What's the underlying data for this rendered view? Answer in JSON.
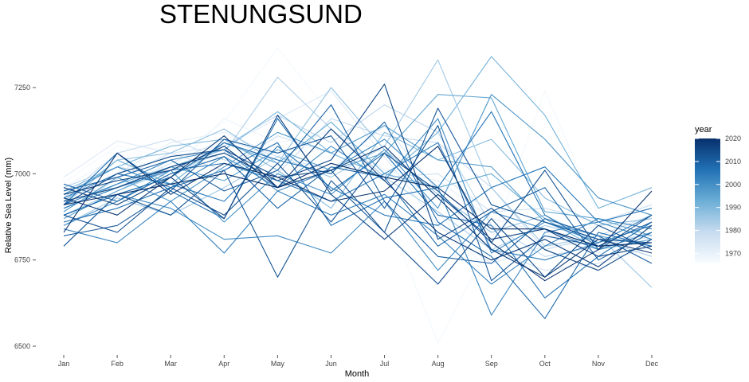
{
  "chart_data": {
    "type": "line",
    "title": "STENUNGSUND",
    "xlabel": "Month",
    "ylabel": "Relative Sea Level (mm)",
    "categories": [
      "Jan",
      "Feb",
      "Mar",
      "Apr",
      "May",
      "Jun",
      "Jul",
      "Aug",
      "Sep",
      "Oct",
      "Nov",
      "Dec"
    ],
    "ylim": [
      6500,
      7360
    ],
    "yticks": [
      6500,
      6750,
      7000,
      7250
    ],
    "grid": false,
    "legend": {
      "title": "year",
      "position": "right",
      "range": [
        1966,
        2020
      ],
      "ticks": [
        1970,
        1980,
        1990,
        2000,
        2010,
        2020
      ],
      "color_low": "#f7fbff",
      "color_high": "#08306b"
    },
    "series": [
      {
        "year": 1967,
        "values": [
          6975,
          7080,
          7045,
          7150,
          7365,
          7170,
          6905,
          6510,
          6805,
          7240,
          6880,
          6800
        ]
      },
      {
        "year": 1969,
        "values": [
          6960,
          7050,
          7010,
          7160,
          7090,
          7120,
          7060,
          6890,
          6700,
          6810,
          6850,
          6910
        ]
      },
      {
        "year": 1971,
        "values": [
          6920,
          7000,
          7090,
          7120,
          7050,
          7130,
          7010,
          6980,
          6870,
          6830,
          6770,
          6820
        ]
      },
      {
        "year": 1973,
        "values": [
          6990,
          7095,
          7060,
          7080,
          7160,
          7240,
          7050,
          6850,
          6740,
          6790,
          6800,
          6850
        ]
      },
      {
        "year": 1975,
        "values": [
          6940,
          6960,
          7030,
          7100,
          7050,
          7010,
          7140,
          6950,
          6780,
          6720,
          6740,
          6790
        ]
      },
      {
        "year": 1977,
        "values": [
          6890,
          6985,
          7060,
          7010,
          7110,
          7060,
          6990,
          7000,
          6890,
          6900,
          6860,
          6910
        ]
      },
      {
        "year": 1979,
        "values": [
          6930,
          7060,
          7100,
          7040,
          7000,
          7160,
          7110,
          7090,
          6960,
          6780,
          6820,
          6880
        ]
      },
      {
        "year": 1981,
        "values": [
          6960,
          7020,
          6990,
          7080,
          7170,
          7090,
          7200,
          7120,
          6850,
          6760,
          6790,
          6830
        ]
      },
      {
        "year": 1983,
        "values": [
          6880,
          6950,
          7010,
          7060,
          7280,
          7130,
          6990,
          6890,
          6780,
          6850,
          6810,
          6760
        ]
      },
      {
        "year": 1985,
        "values": [
          6850,
          6930,
          6880,
          6960,
          7050,
          6990,
          7080,
          7330,
          6960,
          6790,
          6820,
          6670
        ]
      },
      {
        "year": 1987,
        "values": [
          6910,
          7040,
          7060,
          7130,
          7030,
          7250,
          7070,
          6940,
          6830,
          6880,
          6800,
          6850
        ]
      },
      {
        "year": 1989,
        "values": [
          6950,
          7020,
          7080,
          7100,
          7010,
          6900,
          7120,
          7040,
          7100,
          6930,
          6850,
          6870
        ]
      },
      {
        "year": 1991,
        "values": [
          6900,
          6970,
          7020,
          7070,
          7180,
          7060,
          6990,
          7120,
          7340,
          7170,
          6900,
          6960
        ]
      },
      {
        "year": 1993,
        "values": [
          6920,
          7040,
          6970,
          7090,
          7030,
          7150,
          7000,
          6960,
          7000,
          6870,
          6780,
          6810
        ]
      },
      {
        "year": 1995,
        "values": [
          6870,
          6950,
          7020,
          6980,
          7070,
          7010,
          7060,
          7230,
          7220,
          6890,
          6870,
          6820
        ]
      },
      {
        "year": 1997,
        "values": [
          6890,
          6990,
          6920,
          7020,
          7120,
          7060,
          7140,
          7040,
          7020,
          6860,
          6820,
          6790
        ]
      },
      {
        "year": 1999,
        "values": [
          6850,
          6920,
          7010,
          6860,
          7000,
          6940,
          7070,
          6900,
          7230,
          7100,
          6930,
          6880
        ]
      },
      {
        "year": 2000,
        "values": [
          6940,
          7020,
          6960,
          7050,
          6960,
          7080,
          6980,
          7160,
          6770,
          6860,
          6800,
          6850
        ]
      },
      {
        "year": 2001,
        "values": [
          6880,
          6940,
          6900,
          6810,
          6820,
          6770,
          6920,
          6720,
          6890,
          6840,
          6780,
          6830
        ]
      },
      {
        "year": 2002,
        "values": [
          6910,
          6970,
          7040,
          7070,
          6950,
          7010,
          7100,
          6960,
          6590,
          6830,
          6860,
          6810
        ]
      },
      {
        "year": 2003,
        "values": [
          6840,
          6800,
          6920,
          6770,
          6950,
          6880,
          6940,
          6820,
          6680,
          6790,
          6870,
          6840
        ]
      },
      {
        "year": 2004,
        "values": [
          6900,
          6960,
          7010,
          7030,
          6980,
          6920,
          7000,
          7090,
          6780,
          6750,
          6800,
          6880
        ]
      },
      {
        "year": 2005,
        "values": [
          6930,
          7000,
          6970,
          6920,
          7080,
          6960,
          6880,
          6850,
          6960,
          7020,
          6860,
          6900
        ]
      },
      {
        "year": 2006,
        "values": [
          6860,
          6900,
          6960,
          7010,
          7090,
          6850,
          6930,
          6960,
          7180,
          6880,
          6790,
          6800
        ]
      },
      {
        "year": 2007,
        "values": [
          6910,
          7060,
          6950,
          6870,
          7160,
          6950,
          7060,
          6880,
          6850,
          6640,
          6760,
          6860
        ]
      },
      {
        "year": 2008,
        "values": [
          6880,
          6940,
          6990,
          7090,
          7040,
          7000,
          7150,
          6860,
          6760,
          6580,
          6830,
          6790
        ]
      },
      {
        "year": 2009,
        "values": [
          6970,
          6920,
          7000,
          7050,
          6900,
          7020,
          6990,
          6790,
          6890,
          6960,
          6750,
          6830
        ]
      },
      {
        "year": 2010,
        "values": [
          6950,
          6990,
          7040,
          6950,
          7010,
          7200,
          6920,
          6760,
          6740,
          6870,
          6820,
          6740
        ]
      },
      {
        "year": 2011,
        "values": [
          6820,
          6850,
          6950,
          7100,
          7060,
          7110,
          6900,
          7140,
          6690,
          6820,
          6790,
          6860
        ]
      },
      {
        "year": 2012,
        "values": [
          6790,
          6940,
          6880,
          7010,
          6700,
          6980,
          6830,
          7190,
          6910,
          6860,
          6810,
          6800
        ]
      },
      {
        "year": 2013,
        "values": [
          6880,
          6830,
          6960,
          6880,
          7030,
          6860,
          7060,
          6950,
          6800,
          7010,
          6780,
          6880
        ]
      },
      {
        "year": 2014,
        "values": [
          6910,
          7000,
          7050,
          7070,
          6990,
          7010,
          6830,
          6680,
          6870,
          6700,
          6850,
          6780
        ]
      },
      {
        "year": 2015,
        "values": [
          6920,
          6960,
          7020,
          7060,
          6980,
          7040,
          7260,
          6810,
          6900,
          6780,
          6720,
          6810
        ]
      },
      {
        "year": 2016,
        "values": [
          6960,
          6910,
          6990,
          6870,
          7170,
          6940,
          6810,
          6940,
          6810,
          6840,
          6760,
          6790
        ]
      },
      {
        "year": 2017,
        "values": [
          6940,
          6980,
          7010,
          7080,
          6960,
          7130,
          6980,
          6830,
          6750,
          6810,
          6730,
          6850
        ]
      },
      {
        "year": 2018,
        "values": [
          6930,
          6880,
          6990,
          7110,
          6960,
          7010,
          7080,
          6930,
          6780,
          6700,
          6810,
          6770
        ]
      },
      {
        "year": 2019,
        "values": [
          6830,
          7060,
          6940,
          7030,
          6990,
          6920,
          6950,
          7080,
          6800,
          6690,
          6780,
          6950
        ]
      },
      {
        "year": 2020,
        "values": [
          6910,
          6940,
          6970,
          7000,
          6960,
          7030,
          6990,
          6960,
          6840,
          6840,
          6790,
          6800
        ]
      }
    ]
  }
}
